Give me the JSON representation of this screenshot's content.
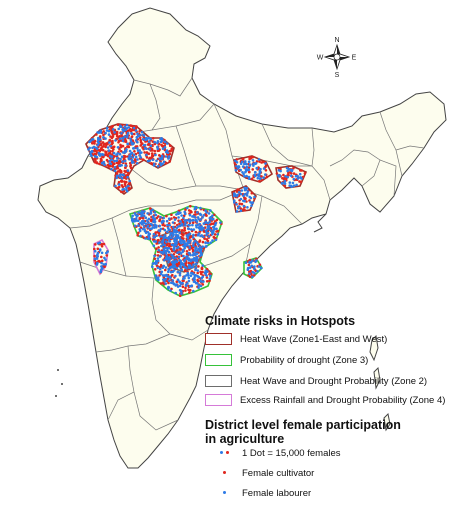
{
  "compass": {
    "north": "N",
    "south": "S",
    "east": "E",
    "west": "W"
  },
  "colors": {
    "land": "#fdfdee",
    "border": "#555555",
    "heat_wave": "#a0302a",
    "drought": "#36c23a",
    "heat_drought": "#6d6d6d",
    "excess_rain": "#d57ad8",
    "cultivator": "#e0261e",
    "labourer": "#2d7be6"
  },
  "legend": {
    "climate_title": "Climate risks in Hotspots",
    "items": [
      {
        "label": "Heat Wave (Zone1-East and West)",
        "color": "#a0302a"
      },
      {
        "label": "Probability of drought (Zone 3)",
        "color": "#36c23a"
      },
      {
        "label": "Heat Wave and Drought Probability (Zone 2)",
        "color": "#6d6d6d"
      },
      {
        "label": "Excess Rainfall and Drought Probability (Zone 4)",
        "color": "#d57ad8"
      }
    ],
    "female_title_line1": "District level female participation",
    "female_title_line2": "in agriculture",
    "dot_items": [
      {
        "label": "1 Dot = 15,000 females",
        "icon": "dot-pair-icon"
      },
      {
        "label": "Female cultivator",
        "icon": "red-dot-icon"
      },
      {
        "label": "Female labourer",
        "icon": "blue-dot-icon"
      }
    ]
  }
}
